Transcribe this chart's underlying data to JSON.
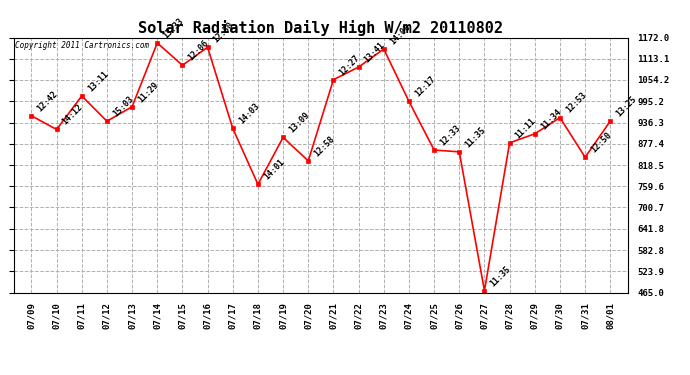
{
  "title": "Solar Radiation Daily High W/m2 20110802",
  "copyright": "Copyright 2011 Cartronics.com",
  "x_labels": [
    "07/09",
    "07/10",
    "07/11",
    "07/12",
    "07/13",
    "07/14",
    "07/15",
    "07/16",
    "07/17",
    "07/18",
    "07/19",
    "07/20",
    "07/21",
    "07/22",
    "07/23",
    "07/24",
    "07/25",
    "07/26",
    "07/27",
    "07/28",
    "07/29",
    "07/30",
    "07/31",
    "08/01"
  ],
  "x_indices": [
    0,
    1,
    2,
    3,
    4,
    5,
    6,
    7,
    8,
    9,
    10,
    11,
    12,
    13,
    14,
    15,
    16,
    17,
    18,
    19,
    20,
    21,
    22,
    23
  ],
  "y_values": [
    955,
    917,
    1010,
    940,
    980,
    1157,
    1095,
    1145,
    920,
    765,
    895,
    830,
    1055,
    1090,
    1140,
    995,
    860,
    855,
    470,
    880,
    905,
    950,
    840,
    940
  ],
  "time_labels": [
    "12:42",
    "14:12",
    "13:11",
    "15:03",
    "11:29",
    "13:33",
    "12:06",
    "12:50",
    "14:03",
    "14:01",
    "13:09",
    "12:58",
    "12:27",
    "13:41",
    "14:08",
    "12:17",
    "12:33",
    "11:35",
    "11:35",
    "11:11",
    "11:34",
    "12:53",
    "12:50",
    "13:25"
  ],
  "ylim": [
    465.0,
    1172.0
  ],
  "yticks": [
    465.0,
    523.9,
    582.8,
    641.8,
    700.7,
    759.6,
    818.5,
    877.4,
    936.3,
    995.2,
    1054.2,
    1113.1,
    1172.0
  ],
  "line_color": "#ff0000",
  "marker_color": "#ff0000",
  "bg_color": "#ffffff",
  "grid_color": "#b0b0b0",
  "title_fontsize": 11,
  "label_fontsize": 6,
  "tick_fontsize": 6.5,
  "copyright_fontsize": 5.5
}
